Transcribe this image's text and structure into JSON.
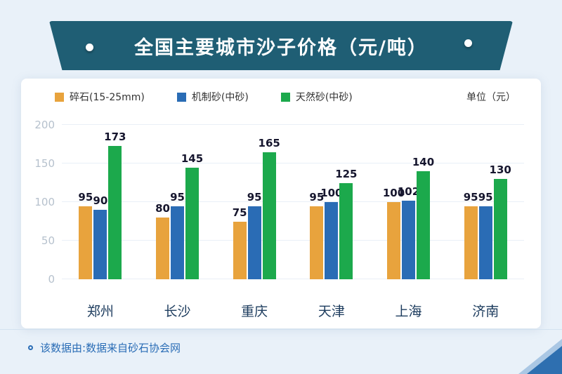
{
  "banner": {
    "title": "全国主要城市沙子价格（元/吨）"
  },
  "legend": {
    "items": [
      {
        "label": "碎石(15-25mm)",
        "color": "#e8a33d"
      },
      {
        "label": "机制砂(中砂)",
        "color": "#2a6cb5"
      },
      {
        "label": "天然砂(中砂)",
        "color": "#1ca94c"
      }
    ],
    "unit": "单位（元）"
  },
  "chart_data": {
    "type": "bar",
    "title": "全国主要城市沙子价格（元/吨）",
    "categories": [
      "郑州",
      "长沙",
      "重庆",
      "天津",
      "上海",
      "济南"
    ],
    "series": [
      {
        "name": "碎石(15-25mm)",
        "color": "#e8a33d",
        "values": [
          95,
          80,
          75,
          95,
          100,
          95
        ]
      },
      {
        "name": "机制砂(中砂)",
        "color": "#2a6cb5",
        "values": [
          90,
          95,
          95,
          100,
          102,
          95
        ]
      },
      {
        "name": "天然砂(中砂)",
        "color": "#1ca94c",
        "values": [
          173,
          145,
          165,
          125,
          140,
          130
        ]
      }
    ],
    "xlabel": "",
    "ylabel": "单位（元）",
    "ylim": [
      0,
      200
    ],
    "yticks": [
      0,
      50,
      100,
      150,
      200
    ],
    "grid": true,
    "legend_position": "top"
  },
  "footer": {
    "source_note": "该数据由:数据来自砂石协会网"
  },
  "colors": {
    "page_bg": "#e9f1f9",
    "banner_bg": "#1f5e74",
    "accent_blue": "#2e6fb0",
    "tick_gray": "#b6c1cd",
    "value_text": "#16162e",
    "city_text": "#1d3c5e"
  }
}
